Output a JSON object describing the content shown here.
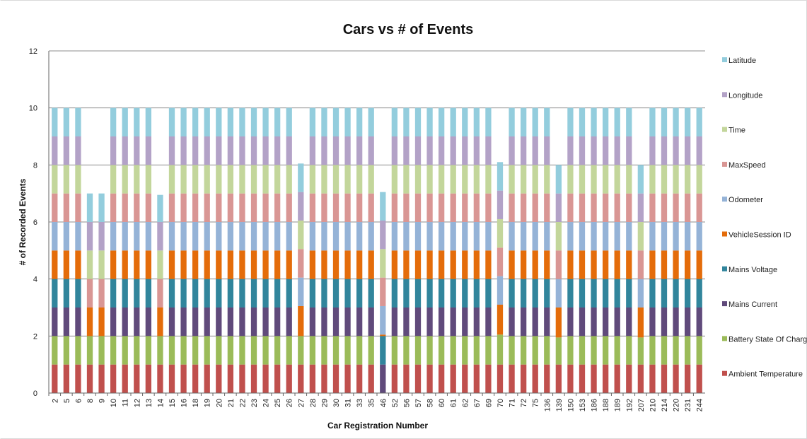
{
  "chart_data": {
    "type": "bar",
    "stacked": true,
    "title": "Cars vs # of Events",
    "xlabel": "Car Registration Number",
    "ylabel": "#  of Recorded Events",
    "ylim": [
      0,
      12
    ],
    "yticks": [
      "0",
      "2",
      "4",
      "6",
      "8",
      "10",
      "12"
    ],
    "grid": true,
    "legend_position": "right",
    "categories": [
      "2",
      "5",
      "6",
      "8",
      "9",
      "10",
      "11",
      "12",
      "13",
      "14",
      "15",
      "16",
      "18",
      "19",
      "20",
      "21",
      "22",
      "23",
      "24",
      "25",
      "26",
      "27",
      "28",
      "29",
      "30",
      "31",
      "33",
      "35",
      "46",
      "52",
      "56",
      "57",
      "58",
      "60",
      "61",
      "62",
      "67",
      "69",
      "70",
      "71",
      "72",
      "75",
      "136",
      "139",
      "150",
      "153",
      "186",
      "188",
      "189",
      "192",
      "207",
      "210",
      "214",
      "220",
      "231",
      "244"
    ],
    "series": [
      {
        "name": "Ambient Temperature",
        "color": "#c0504d",
        "values": [
          1,
          1,
          1,
          1,
          1,
          1,
          1,
          1,
          1,
          1,
          1,
          1,
          1,
          1,
          1,
          1,
          1,
          1,
          1,
          1,
          1,
          1,
          1,
          1,
          1,
          1,
          1,
          1,
          0,
          1,
          1,
          1,
          1,
          1,
          1,
          1,
          1,
          1,
          1,
          1,
          1,
          1,
          1,
          1,
          1,
          1,
          1,
          1,
          1,
          1,
          1,
          1,
          1,
          1,
          1,
          1
        ]
      },
      {
        "name": "Battery State Of Charge",
        "color": "#9bbb59",
        "values": [
          1,
          1,
          1,
          1,
          1,
          1,
          1,
          1,
          1,
          1,
          1,
          1,
          1,
          1,
          1,
          1,
          1,
          1,
          1,
          1,
          1,
          1,
          1,
          1,
          1,
          1,
          1,
          1,
          0,
          1,
          1,
          1,
          1,
          1,
          1,
          1,
          1,
          1,
          1.05,
          1,
          1,
          1,
          1,
          0.95,
          1,
          1,
          1,
          1,
          1,
          1,
          0.95,
          1,
          1,
          1,
          1,
          1
        ]
      },
      {
        "name": "Mains Current",
        "color": "#604a7b",
        "values": [
          1,
          1,
          1,
          0,
          0,
          1,
          1,
          1,
          1,
          0,
          1,
          1,
          1,
          1,
          1,
          1,
          1,
          1,
          1,
          1,
          1,
          0,
          1,
          1,
          1,
          1,
          1,
          1,
          1,
          1,
          1,
          1,
          1,
          1,
          1,
          1,
          1,
          1,
          0,
          1,
          1,
          1,
          1,
          0,
          1,
          1,
          1,
          1,
          1,
          1,
          0,
          1,
          1,
          1,
          1,
          1
        ]
      },
      {
        "name": "Mains Voltage",
        "color": "#31859c",
        "values": [
          1,
          1,
          1,
          0,
          0,
          1,
          1,
          1,
          1,
          0,
          1,
          1,
          1,
          1,
          1,
          1,
          1,
          1,
          1,
          1,
          1,
          0,
          1,
          1,
          1,
          1,
          1,
          1,
          1,
          1,
          1,
          1,
          1,
          1,
          1,
          1,
          1,
          1,
          0,
          1,
          1,
          1,
          1,
          0,
          1,
          1,
          1,
          1,
          1,
          1,
          0,
          1,
          1,
          1,
          1,
          1
        ]
      },
      {
        "name": "VehicleSession ID",
        "color": "#e46c0a",
        "values": [
          1,
          1,
          1,
          1,
          1,
          1,
          1,
          1,
          1,
          1,
          1,
          1,
          1,
          1,
          1,
          1,
          1,
          1,
          1,
          1,
          1,
          1.05,
          1,
          1,
          1,
          1,
          1,
          1,
          0.05,
          1,
          1,
          1,
          1,
          1,
          1,
          1,
          1,
          1,
          1.05,
          1,
          1,
          1,
          1,
          1.05,
          1,
          1,
          1,
          1,
          1,
          1,
          1.05,
          1,
          1,
          1,
          1,
          1
        ]
      },
      {
        "name": "Odometer",
        "color": "#95b3d7",
        "values": [
          1,
          1,
          1,
          0,
          0,
          1,
          1,
          1,
          1,
          0,
          1,
          1,
          1,
          1,
          1,
          1,
          1,
          1,
          1,
          1,
          1,
          1,
          1,
          1,
          1,
          1,
          1,
          1,
          1,
          1,
          1,
          1,
          1,
          1,
          1,
          1,
          1,
          1,
          1,
          1,
          1,
          1,
          1,
          1,
          1,
          1,
          1,
          1,
          1,
          1,
          1,
          1,
          1,
          1,
          1,
          1
        ]
      },
      {
        "name": "MaxSpeed",
        "color": "#d99694",
        "values": [
          1,
          1,
          1,
          1,
          1,
          1,
          1,
          1,
          1,
          1,
          1,
          1,
          1,
          1,
          1,
          1,
          1,
          1,
          1,
          1,
          1,
          1,
          1,
          1,
          1,
          1,
          1,
          1,
          1,
          1,
          1,
          1,
          1,
          1,
          1,
          1,
          1,
          1,
          1,
          1,
          1,
          1,
          1,
          1,
          1,
          1,
          1,
          1,
          1,
          1,
          1,
          1,
          1,
          1,
          1,
          1
        ]
      },
      {
        "name": "Time",
        "color": "#c3d69b",
        "values": [
          1,
          1,
          1,
          1,
          1,
          1,
          1,
          1,
          1,
          1,
          1,
          1,
          1,
          1,
          1,
          1,
          1,
          1,
          1,
          1,
          1,
          1,
          1,
          1,
          1,
          1,
          1,
          1,
          1,
          1,
          1,
          1,
          1,
          1,
          1,
          1,
          1,
          1,
          1,
          1,
          1,
          1,
          1,
          1,
          1,
          1,
          1,
          1,
          1,
          1,
          1,
          1,
          1,
          1,
          1,
          1
        ]
      },
      {
        "name": "Longitude",
        "color": "#b3a2c7",
        "values": [
          1,
          1,
          1,
          1,
          1,
          1,
          1,
          1,
          1,
          1,
          1,
          1,
          1,
          1,
          1,
          1,
          1,
          1,
          1,
          1,
          1,
          1,
          1,
          1,
          1,
          1,
          1,
          1,
          1,
          1,
          1,
          1,
          1,
          1,
          1,
          1,
          1,
          1,
          1,
          1,
          1,
          1,
          1,
          1,
          1,
          1,
          1,
          1,
          1,
          1,
          1,
          1,
          1,
          1,
          1,
          1
        ]
      },
      {
        "name": "Latitude",
        "color": "#93cddd",
        "values": [
          1,
          1,
          1,
          1,
          1,
          1,
          1,
          1,
          1,
          0.95,
          1,
          1,
          1,
          1,
          1,
          1,
          1,
          1,
          1,
          1,
          1,
          1,
          1,
          1,
          1,
          1,
          1,
          1,
          1,
          1,
          1,
          1,
          1,
          1,
          1,
          1,
          1,
          1,
          1,
          1,
          1,
          1,
          1,
          1,
          1,
          1,
          1,
          1,
          1,
          1,
          1,
          1,
          1,
          1,
          1,
          1
        ]
      }
    ]
  }
}
